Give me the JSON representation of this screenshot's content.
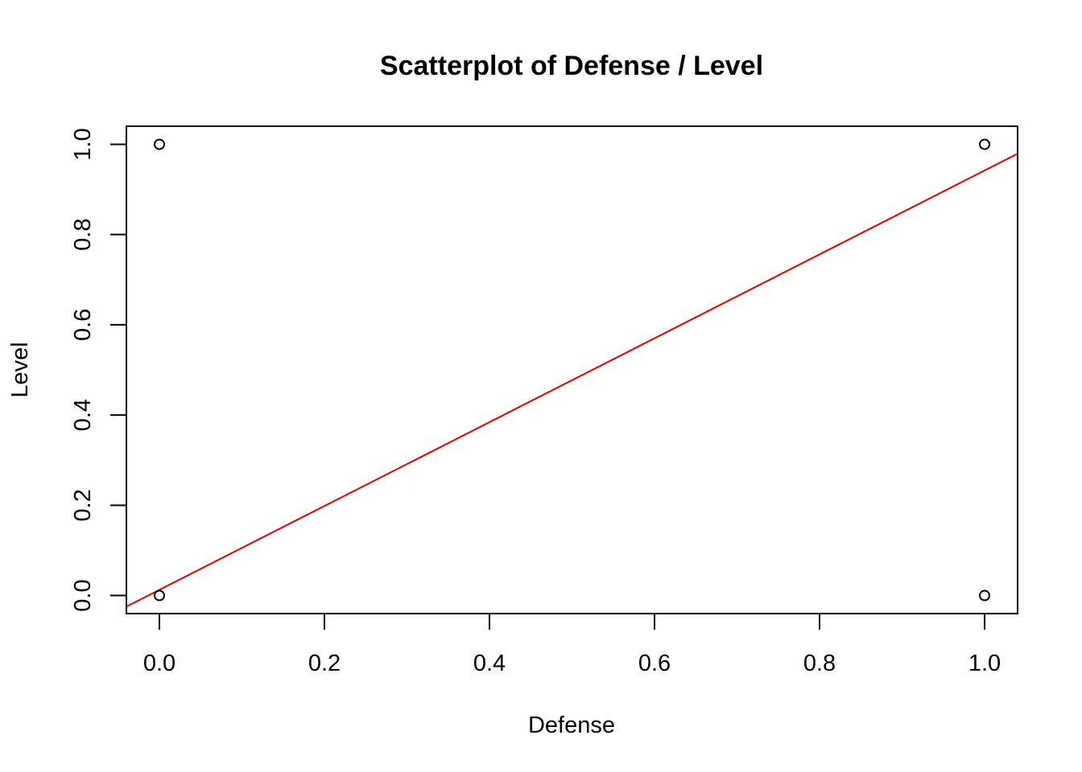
{
  "chart_data": {
    "type": "scatter",
    "title": "Scatterplot of Defense / Level",
    "xlabel": "Defense",
    "ylabel": "Level",
    "xlim": [
      -0.04,
      1.04
    ],
    "ylim": [
      -0.04,
      1.04
    ],
    "x_ticks": [
      0.0,
      0.2,
      0.4,
      0.6,
      0.8,
      1.0
    ],
    "x_tick_labels": [
      "0.0",
      "0.2",
      "0.4",
      "0.6",
      "0.8",
      "1.0"
    ],
    "y_ticks": [
      0.0,
      0.2,
      0.4,
      0.6,
      0.8,
      1.0
    ],
    "y_tick_labels": [
      "0.0",
      "0.2",
      "0.4",
      "0.6",
      "0.8",
      "1.0"
    ],
    "grid": false,
    "points": [
      {
        "x": 0.0,
        "y": 1.0
      },
      {
        "x": 1.0,
        "y": 1.0
      },
      {
        "x": 0.0,
        "y": 0.0
      },
      {
        "x": 1.0,
        "y": 0.0
      }
    ],
    "regression_line": {
      "intercept": 0.0125,
      "slope": 0.9294,
      "color": "#e00000"
    },
    "point_color": "#000000"
  }
}
